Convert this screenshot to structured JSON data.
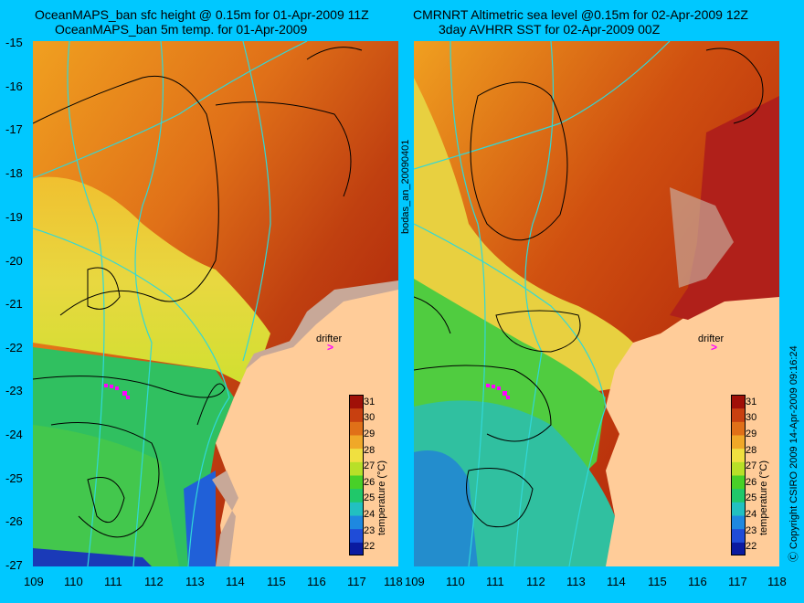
{
  "left_panel": {
    "title_line1": "OceanMAPS_ban sfc height @ 0.15m for 01-Apr-2009 11Z",
    "title_line2": "OceanMAPS_ban 5m temp. for 01-Apr-2009",
    "drifter_label": "drifter",
    "drifter_marker": ">"
  },
  "right_panel": {
    "title_line1": "CMRNRT Altimetric sea level  @0.15m  for 02-Apr-2009 12Z",
    "title_line2": "3day AVHRR SST for 02-Apr-2009 00Z",
    "drifter_label": "drifter",
    "drifter_marker": ">"
  },
  "side_labels": {
    "middle": "bodas_an_20090401",
    "right": "Ⓒ Copyright CSIRO 2009   14-Apr-2009 09:16:24"
  },
  "axes": {
    "lon_ticks": [
      "109",
      "110",
      "111",
      "112",
      "113",
      "114",
      "115",
      "116",
      "117",
      "118"
    ],
    "lat_ticks": [
      "-15",
      "-16",
      "-17",
      "-18",
      "-19",
      "-20",
      "-21",
      "-22",
      "-23",
      "-24",
      "-25",
      "-26",
      "-27"
    ]
  },
  "colorbar": {
    "title": "temperature (°C)",
    "labels": [
      "31",
      "30",
      "29",
      "28",
      "27",
      "26",
      "25",
      "24",
      "23",
      "22"
    ],
    "range": [
      21.5,
      31.5
    ],
    "colors": [
      "#0a1aa0",
      "#1f4cd8",
      "#1e88e0",
      "#22c0c0",
      "#20c86a",
      "#48d028",
      "#b8e028",
      "#f0e040",
      "#f0a828",
      "#e07018",
      "#c84010",
      "#a01008"
    ]
  },
  "colors": {
    "land": "#ffcc99",
    "shelf_land": "#c8a898",
    "contour_cyan": "#30d8d8",
    "contour_black": "#000000",
    "drifter": "#ff00ff",
    "background": "#00c8ff"
  }
}
